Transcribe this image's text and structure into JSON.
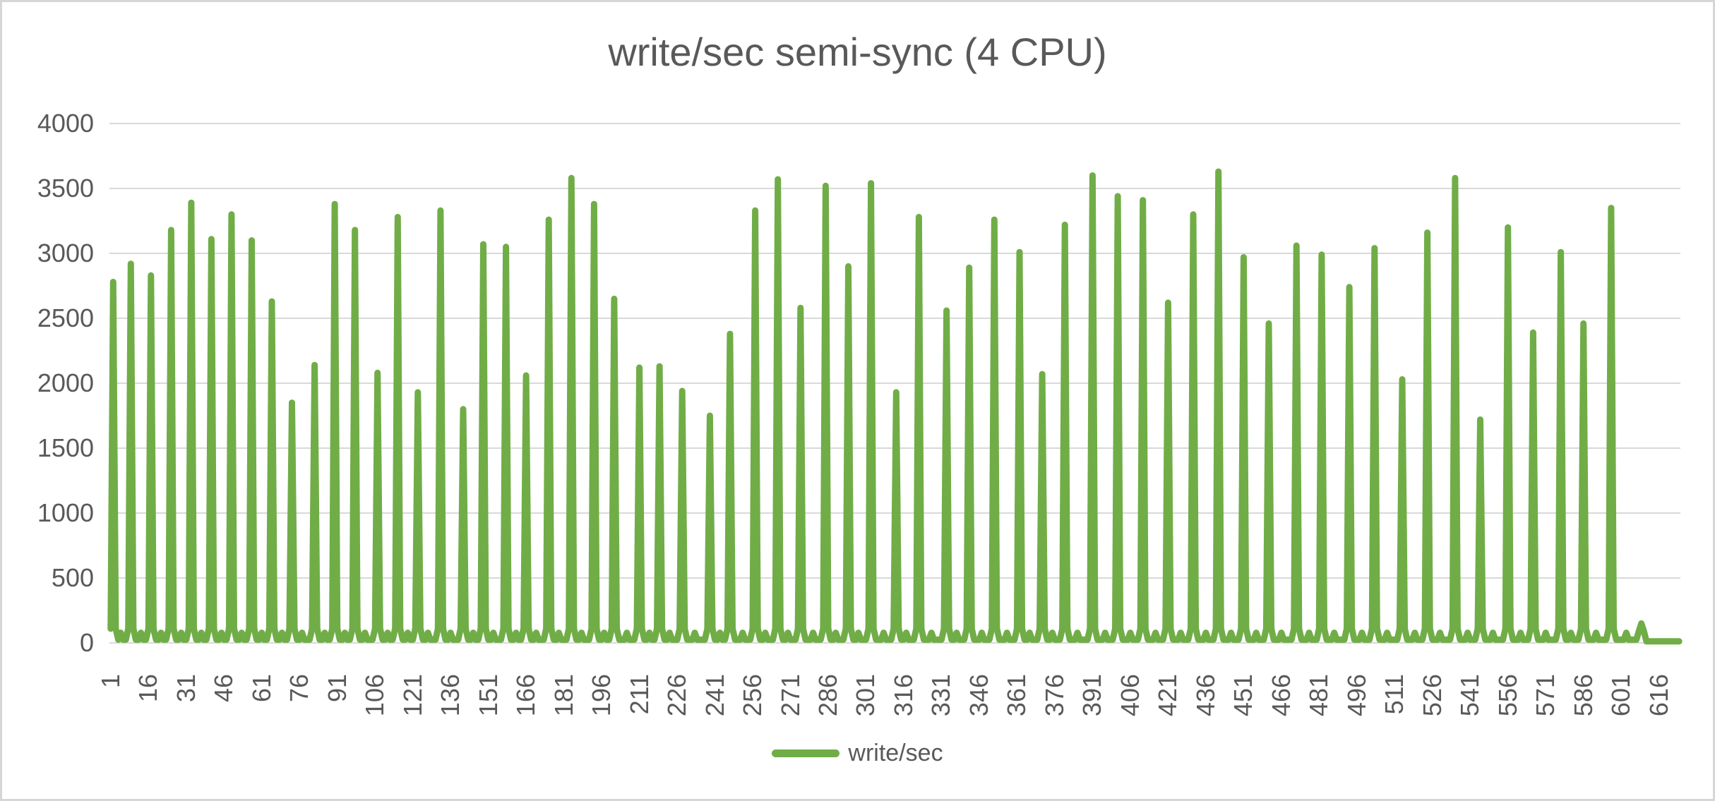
{
  "chart": {
    "title": "write/sec semi-sync (4 CPU)",
    "legend_label": "write/sec"
  },
  "chart_data": {
    "type": "line",
    "title": "write/sec semi-sync (4 CPU)",
    "series_name": "write/sec",
    "legend_position": "bottom",
    "grid": "horizontal",
    "colors": {
      "series": "#70AD47",
      "gridline": "#D9D9D9",
      "text": "#595959",
      "border": "#D6D6D6",
      "background": "#FFFFFF"
    },
    "y_axis": {
      "min": 0,
      "max": 4000,
      "tick_step": 500,
      "tick_labels": [
        "4000",
        "3500",
        "3000",
        "2500",
        "2000",
        "1500",
        "1000",
        "500",
        "0"
      ]
    },
    "x_axis": {
      "first_label": 1,
      "tick_interval": 15,
      "n_points": 624,
      "tick_labels": [
        "1",
        "16",
        "31",
        "46",
        "61",
        "76",
        "91",
        "106",
        "121",
        "136",
        "151",
        "166",
        "181",
        "196",
        "211",
        "226",
        "241",
        "256",
        "271",
        "286",
        "301",
        "316",
        "331",
        "346",
        "361",
        "376",
        "391",
        "406",
        "421",
        "436",
        "451",
        "466",
        "481",
        "496",
        "511",
        "526",
        "541",
        "556",
        "571",
        "586",
        "601",
        "616"
      ]
    },
    "description": "Periodic write bursts: the series idles near 0 writes/sec and spikes at each burst. spike_points = [point_index, peak_write_per_sec].",
    "spike_points": [
      [
        2,
        2780
      ],
      [
        9,
        2920
      ],
      [
        17,
        2830
      ],
      [
        25,
        3180
      ],
      [
        33,
        3390
      ],
      [
        41,
        3110
      ],
      [
        49,
        3300
      ],
      [
        57,
        3100
      ],
      [
        65,
        2630
      ],
      [
        73,
        1850
      ],
      [
        82,
        2140
      ],
      [
        90,
        3380
      ],
      [
        98,
        3180
      ],
      [
        107,
        2080
      ],
      [
        115,
        3280
      ],
      [
        123,
        1930
      ],
      [
        132,
        3330
      ],
      [
        141,
        1800
      ],
      [
        149,
        3070
      ],
      [
        158,
        3050
      ],
      [
        166,
        2060
      ],
      [
        175,
        3260
      ],
      [
        184,
        3580
      ],
      [
        193,
        3380
      ],
      [
        201,
        2650
      ],
      [
        211,
        2120
      ],
      [
        219,
        2130
      ],
      [
        228,
        1940
      ],
      [
        239,
        1750
      ],
      [
        247,
        2380
      ],
      [
        257,
        3330
      ],
      [
        266,
        3570
      ],
      [
        275,
        2580
      ],
      [
        285,
        3520
      ],
      [
        294,
        2900
      ],
      [
        303,
        3540
      ],
      [
        313,
        1930
      ],
      [
        322,
        3280
      ],
      [
        333,
        2560
      ],
      [
        342,
        2890
      ],
      [
        352,
        3260
      ],
      [
        362,
        3010
      ],
      [
        371,
        2070
      ],
      [
        380,
        3220
      ],
      [
        391,
        3600
      ],
      [
        401,
        3440
      ],
      [
        411,
        3410
      ],
      [
        421,
        2620
      ],
      [
        431,
        3300
      ],
      [
        441,
        3630
      ],
      [
        451,
        2970
      ],
      [
        461,
        2460
      ],
      [
        472,
        3060
      ],
      [
        482,
        2990
      ],
      [
        493,
        2740
      ],
      [
        503,
        3040
      ],
      [
        514,
        2030
      ],
      [
        524,
        3160
      ],
      [
        535,
        3580
      ],
      [
        545,
        1720
      ],
      [
        556,
        3200
      ],
      [
        566,
        2390
      ],
      [
        577,
        3010
      ],
      [
        586,
        2460
      ],
      [
        597,
        3350
      ],
      [
        609,
        150
      ]
    ],
    "reconstruction": {
      "baseline": 25,
      "lead_value": 60,
      "shoulder_max": 110,
      "shoulder_ratio": 0.6,
      "mid_gap_bump": 78,
      "tail_start_point": 611,
      "tail_value": 12
    }
  }
}
